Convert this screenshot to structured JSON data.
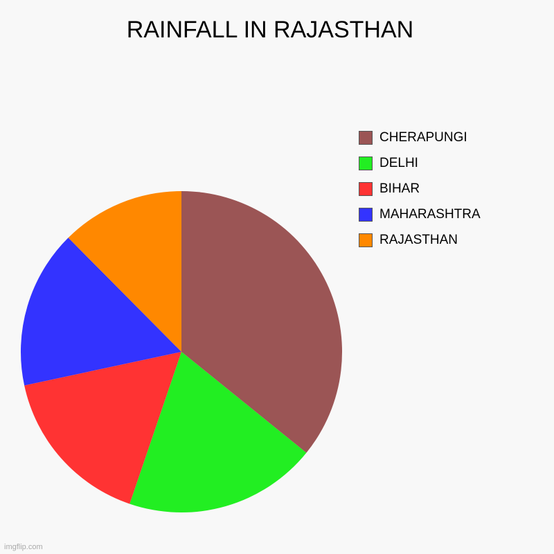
{
  "chart_data": {
    "type": "pie",
    "title": "RAINFALL IN RAJASTHAN",
    "slices": [
      {
        "label": "CHERAPUNGI",
        "value": 36,
        "color": "#9b5555"
      },
      {
        "label": "DELHI",
        "value": 19.5,
        "color": "#22ee22"
      },
      {
        "label": "BIHAR",
        "value": 16.5,
        "color": "#ff3333"
      },
      {
        "label": "MAHARASHTRA",
        "value": 16,
        "color": "#3333ff"
      },
      {
        "label": "RAJASTHAN",
        "value": 12.5,
        "color": "#ff8800"
      }
    ],
    "legend": [
      {
        "label": "CHERAPUNGI",
        "color": "#9b5555"
      },
      {
        "label": "DELHI",
        "color": "#22ee22"
      },
      {
        "label": "BIHAR",
        "color": "#ff3333"
      },
      {
        "label": "MAHARASHTRA",
        "color": "#3333ff"
      },
      {
        "label": "RAJASTHAN",
        "color": "#ff8800"
      }
    ],
    "legend_position": "right"
  },
  "watermark": "imgflip.com"
}
